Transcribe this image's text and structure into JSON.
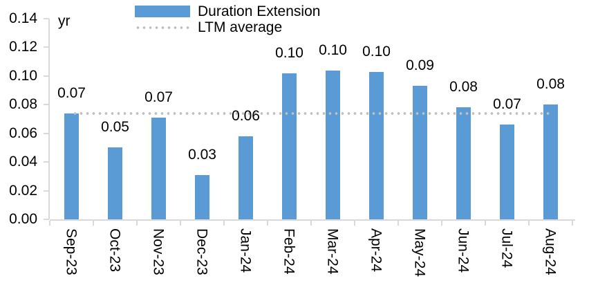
{
  "chart_data": {
    "type": "bar",
    "title": "",
    "unit_label": "yr",
    "categories": [
      "Sep-23",
      "Oct-23",
      "Nov-23",
      "Dec-23",
      "Jan-24",
      "Feb-24",
      "Mar-24",
      "Apr-24",
      "May-24",
      "Jun-24",
      "Jul-24",
      "Aug-24"
    ],
    "series": [
      {
        "name": "Duration Extension",
        "values": [
          0.074,
          0.05,
          0.071,
          0.031,
          0.058,
          0.102,
          0.104,
          0.103,
          0.093,
          0.078,
          0.066,
          0.08
        ],
        "data_labels": [
          "0.07",
          "0.05",
          "0.07",
          "0.03",
          "0.06",
          "0.10",
          "0.10",
          "0.10",
          "0.09",
          "0.08",
          "0.07",
          "0.08"
        ],
        "color": "#5B9BD5"
      }
    ],
    "ltm_average": {
      "name": "LTM average",
      "value": 0.074,
      "color": "#BFBFBF",
      "style": "dotted"
    },
    "ylim": [
      0,
      0.14
    ],
    "yticks": [
      "0.00",
      "0.02",
      "0.04",
      "0.06",
      "0.08",
      "0.10",
      "0.12",
      "0.14"
    ],
    "xlabel": "",
    "ylabel": "yr",
    "grid": false,
    "legend_position": "top",
    "axis_color": "#D9D9D9",
    "text_color": "#000000"
  }
}
